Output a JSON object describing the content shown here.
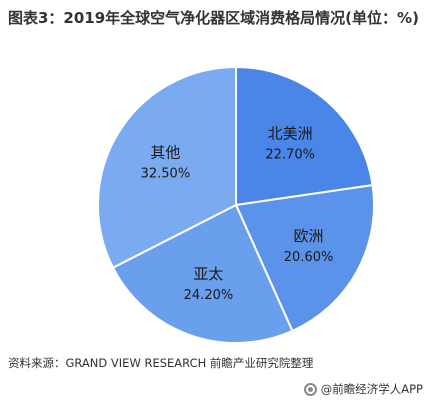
{
  "title": "图表3：2019年全球空气净化器区域消费格局情况(单位：%)",
  "source": "资料来源：GRAND VIEW RESEARCH 前瞻产业研究院整理",
  "brand": "@前瞻经济学人APP",
  "chart_data": {
    "type": "pie",
    "title": "图表3：2019年全球空气净化器区域消费格局情况(单位：%)",
    "unit": "%",
    "slices": [
      {
        "label": "北美洲",
        "value": 22.7,
        "value_label": "22.70%",
        "color": "#4a86e8"
      },
      {
        "label": "欧洲",
        "value": 20.6,
        "value_label": "20.60%",
        "color": "#5b93ea"
      },
      {
        "label": "亚太",
        "value": 24.2,
        "value_label": "24.20%",
        "color": "#6a9fee"
      },
      {
        "label": "其他",
        "value": 32.5,
        "value_label": "32.50%",
        "color": "#7aaaf0"
      }
    ],
    "start_angle_deg": 0,
    "direction": "clockwise",
    "edge_color": "#ffffff"
  }
}
